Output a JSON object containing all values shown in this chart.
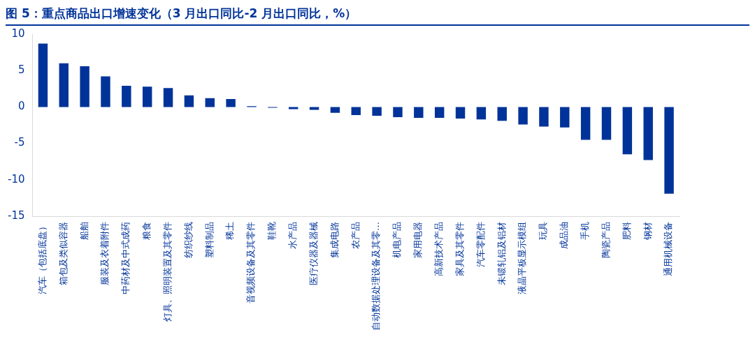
{
  "chart_data": {
    "type": "bar",
    "title": "图 5：重点商品出口增速变化（3 月出口同比-2 月出口同比，%）",
    "categories": [
      "汽车（包括底盘）",
      "箱包及类似容器",
      "船舶",
      "服装及衣着附件",
      "中药材及中式成药",
      "粮食",
      "灯具、照明装置及其零件",
      "纺织纱线",
      "塑料制品",
      "稀土",
      "音视频设备及其零件",
      "鞋靴",
      "水产品",
      "医疗仪器及器械",
      "集成电路",
      "农产品",
      "自动数据处理设备及其零…",
      "机电产品",
      "家用电器",
      "高新技术产品",
      "家具及其零件",
      "汽车零配件",
      "未锻轧铝及铝材",
      "液晶平板显示模组",
      "玩具",
      "成品油",
      "手机",
      "陶瓷产品",
      "肥料",
      "钢材",
      "通用机械设备"
    ],
    "values": [
      8.7,
      6.0,
      5.6,
      4.2,
      2.9,
      2.8,
      2.6,
      1.6,
      1.2,
      1.1,
      0.1,
      -0.1,
      -0.3,
      -0.4,
      -0.8,
      -1.1,
      -1.2,
      -1.4,
      -1.5,
      -1.5,
      -1.6,
      -1.7,
      -1.9,
      -2.4,
      -2.7,
      -2.8,
      -4.5,
      -4.5,
      -6.5,
      -7.3,
      -11.9
    ],
    "color": "#003399",
    "ylim": [
      -15,
      10
    ],
    "yticks": [
      -15,
      -10,
      -5,
      0,
      5,
      10
    ],
    "grid": false,
    "legend": false
  }
}
